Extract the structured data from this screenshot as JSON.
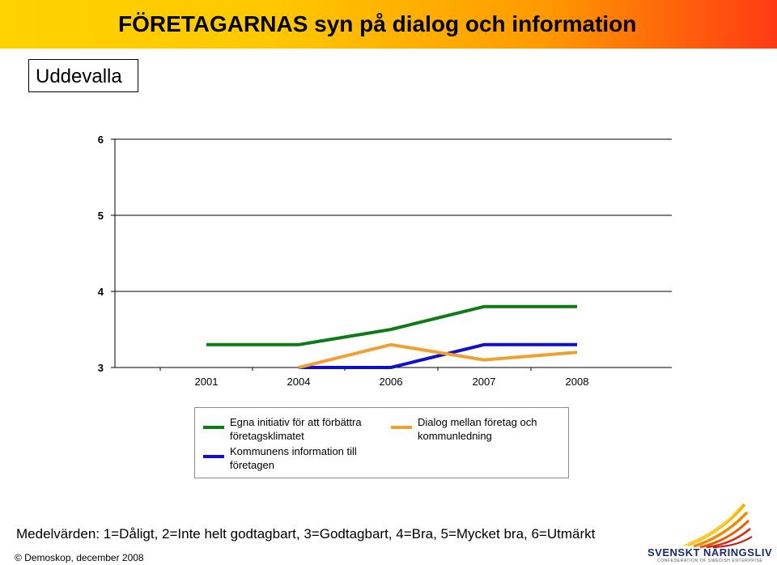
{
  "header": {
    "title": "FÖRETAGARNAS syn på dialog och information"
  },
  "location": "Uddevalla",
  "chart_data": {
    "type": "line",
    "categories": [
      "2001",
      "2004",
      "2006",
      "2007",
      "2008"
    ],
    "ylim": [
      3,
      6
    ],
    "yticks": [
      3,
      4,
      5,
      6
    ],
    "grid": true,
    "series": [
      {
        "name": "Egna initiativ för att förbättra företagsklimatet",
        "color": "#0f7a17",
        "values": [
          3.3,
          3.3,
          3.5,
          3.8,
          3.8
        ]
      },
      {
        "name": "Kommunens information till företagen",
        "color": "#1010cc",
        "values": [
          null,
          3.0,
          3.0,
          3.3,
          3.3
        ]
      },
      {
        "name": "Dialog mellan företag och kommunledning",
        "color": "#f0a030",
        "values": [
          null,
          3.0,
          3.3,
          3.1,
          3.2
        ]
      }
    ],
    "legend": "bottom"
  },
  "footnote": "Medelvärden: 1=Dåligt, 2=Inte helt godtagbart, 3=Godtagbart, 4=Bra, 5=Mycket bra, 6=Utmärkt",
  "copyright": "© Demoskop, december 2008",
  "logo": {
    "name": "SVENSKT NÄRINGSLIV",
    "tagline": "CONFEDERATION OF SWEDISH ENTERPRISE"
  }
}
